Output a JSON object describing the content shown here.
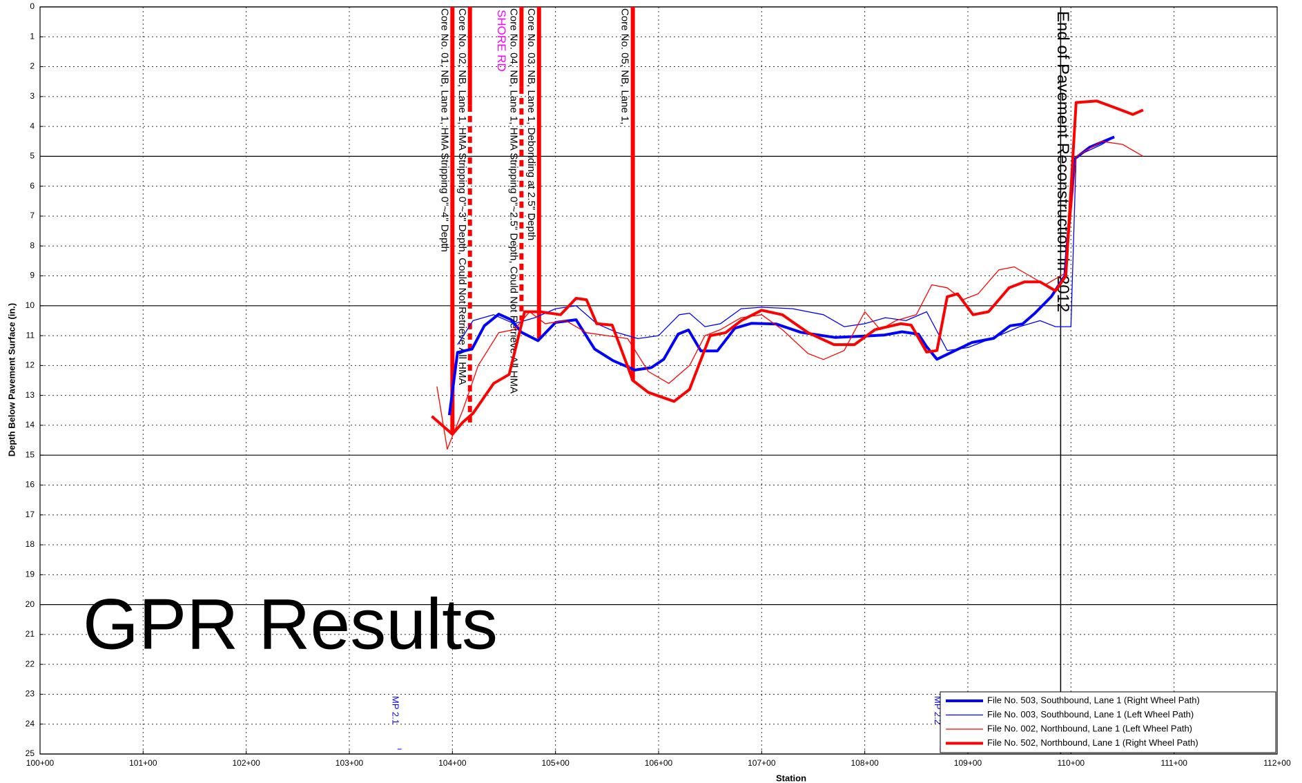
{
  "chart_data": {
    "type": "line",
    "overlay_title": "GPR Results",
    "x_label": "Station",
    "y_label": "Depth Below Pavement Surface (in.)",
    "xlim": [
      100,
      112
    ],
    "ylim": [
      0,
      25
    ],
    "y_inverted": true,
    "xticks": [
      {
        "value": 100,
        "label": "100+00"
      },
      {
        "value": 101,
        "label": "101+00"
      },
      {
        "value": 102,
        "label": "102+00"
      },
      {
        "value": 103,
        "label": "103+00"
      },
      {
        "value": 104,
        "label": "104+00"
      },
      {
        "value": 105,
        "label": "105+00"
      },
      {
        "value": 106,
        "label": "106+00"
      },
      {
        "value": 107,
        "label": "107+00"
      },
      {
        "value": 108,
        "label": "108+00"
      },
      {
        "value": 109,
        "label": "109+00"
      },
      {
        "value": 110,
        "label": "110+00"
      },
      {
        "value": 111,
        "label": "111+00"
      },
      {
        "value": 112,
        "label": "112+00"
      }
    ],
    "yticks": [
      0,
      1,
      2,
      3,
      4,
      5,
      6,
      7,
      8,
      9,
      10,
      11,
      12,
      13,
      14,
      15,
      16,
      17,
      18,
      19,
      20,
      21,
      22,
      23,
      24,
      25
    ],
    "grid": true,
    "legend_position": "lower right",
    "series": [
      {
        "name": "File No. 503, Southbound, Lane 1 (Right Wheel Path)",
        "color": "#0000ff",
        "line_width": 4,
        "x": [
          103.97,
          104.05,
          104.19,
          104.31,
          104.45,
          104.57,
          104.67,
          104.83,
          105.0,
          105.2,
          105.38,
          105.56,
          105.77,
          105.93,
          106.05,
          106.19,
          106.29,
          106.41,
          106.57,
          106.74,
          106.9,
          107.14,
          107.38,
          107.71,
          108.03,
          108.19,
          108.36,
          108.52,
          108.6,
          108.7,
          108.84,
          109.04,
          109.25,
          109.41,
          109.53,
          109.65,
          109.81,
          109.94,
          110.03,
          110.18,
          110.42
        ],
        "values": [
          13.66,
          11.56,
          11.45,
          10.67,
          10.28,
          10.47,
          10.89,
          11.17,
          10.56,
          10.47,
          11.45,
          11.84,
          12.15,
          12.07,
          11.79,
          10.95,
          10.81,
          11.51,
          11.51,
          10.75,
          10.59,
          10.61,
          10.89,
          11.06,
          11.01,
          10.98,
          10.87,
          10.95,
          11.37,
          11.79,
          11.56,
          11.23,
          11.09,
          10.67,
          10.61,
          10.25,
          9.69,
          9.0,
          5.1,
          4.7,
          4.35
        ]
      },
      {
        "name": "File No. 003, Southbound, Lane 1 (Left Wheel Path)",
        "color": "#0000ff",
        "line_width": 1.3,
        "x": [
          104.05,
          104.2,
          104.4,
          104.6,
          104.8,
          105.0,
          105.2,
          105.4,
          105.6,
          105.8,
          106.0,
          106.2,
          106.3,
          106.45,
          106.6,
          106.8,
          107.0,
          107.3,
          107.6,
          107.8,
          108.0,
          108.2,
          108.4,
          108.6,
          108.8,
          109.0,
          109.3,
          109.5,
          109.7,
          109.85,
          110.0,
          110.05,
          110.3,
          110.4
        ],
        "values": [
          11.3,
          10.5,
          10.3,
          10.6,
          10.4,
          10.1,
          10.0,
          10.6,
          10.9,
          11.1,
          11.0,
          10.3,
          10.25,
          10.7,
          10.6,
          10.1,
          10.05,
          10.1,
          10.3,
          10.7,
          10.6,
          10.4,
          10.5,
          10.2,
          11.5,
          11.4,
          11.0,
          10.7,
          10.5,
          10.7,
          10.7,
          5.0,
          4.6,
          4.4
        ]
      },
      {
        "name": "File No. 002, Northbound, Lane 1 (Left Wheel Path)",
        "color": "#ff0000",
        "line_width": 1.3,
        "x": [
          103.85,
          103.95,
          104.1,
          104.25,
          104.45,
          104.6,
          104.75,
          104.9,
          105.1,
          105.3,
          105.5,
          105.7,
          105.9,
          106.1,
          106.3,
          106.45,
          106.6,
          106.8,
          107.0,
          107.2,
          107.45,
          107.6,
          107.8,
          108.0,
          108.15,
          108.3,
          108.5,
          108.65,
          108.8,
          108.95,
          109.1,
          109.3,
          109.45,
          109.6,
          109.75,
          109.95,
          110.05,
          110.3,
          110.5,
          110.7
        ],
        "values": [
          12.7,
          14.8,
          13.5,
          12.0,
          10.9,
          10.8,
          10.2,
          10.6,
          10.5,
          10.9,
          11.0,
          11.1,
          12.2,
          12.6,
          12.0,
          11.0,
          10.8,
          10.4,
          10.3,
          10.8,
          11.6,
          11.8,
          11.5,
          10.2,
          10.8,
          10.5,
          10.3,
          9.3,
          9.4,
          9.8,
          9.6,
          8.8,
          8.7,
          9.0,
          9.3,
          8.9,
          5.0,
          4.5,
          4.6,
          5.0
        ]
      },
      {
        "name": "File No. 502, Northbound, Lane 1 (Right Wheel Path)",
        "color": "#ff0000",
        "line_width": 4,
        "x": [
          103.8,
          104.0,
          104.1,
          104.2,
          104.4,
          104.55,
          104.7,
          104.85,
          105.05,
          105.2,
          105.3,
          105.4,
          105.55,
          105.75,
          105.9,
          106.15,
          106.3,
          106.5,
          106.65,
          106.8,
          107.0,
          107.2,
          107.45,
          107.7,
          107.9,
          108.1,
          108.35,
          108.45,
          108.6,
          108.7,
          108.8,
          108.9,
          109.05,
          109.2,
          109.4,
          109.55,
          109.7,
          109.85,
          109.95,
          110.05,
          110.25,
          110.45,
          110.6,
          110.7
        ],
        "values": [
          13.7,
          14.3,
          13.9,
          13.6,
          12.6,
          12.3,
          10.2,
          10.2,
          10.3,
          9.75,
          9.8,
          10.6,
          10.65,
          12.5,
          12.9,
          13.2,
          12.8,
          11.0,
          10.9,
          10.5,
          10.15,
          10.3,
          10.9,
          11.3,
          11.3,
          10.8,
          10.6,
          10.65,
          11.55,
          11.5,
          9.7,
          9.6,
          10.3,
          10.2,
          9.4,
          9.2,
          9.2,
          9.5,
          9.0,
          3.2,
          3.15,
          3.4,
          3.6,
          3.45
        ]
      }
    ],
    "cores": [
      {
        "station": 104.0,
        "depth": 14.3,
        "color": "#ff0000",
        "label": "Core No. 01, NB, Lane 1, HMA Stripping 0\"~4\" Depth"
      },
      {
        "station": 104.17,
        "depth": 14.0,
        "dash_from": 3.3,
        "color": "#ff0000",
        "label": "Core No. 02, NB, Lane 1, HMA Stripping 0\"~3\" Depth, Could Not Retrieve All HMA"
      },
      {
        "station": 104.67,
        "depth": 10.5,
        "dash_from": 2.7,
        "color": "#ff0000",
        "label": "Core No. 04, NB, Lane 1, HMA Stripping 0\"~2.5\" Depth, Could Not Retrieve All HMA"
      },
      {
        "station": 104.84,
        "depth": 11.1,
        "color": "#ff0000",
        "label": "Core No. 03, NB, Lane 1, Debonding at 2.5\" Depth"
      },
      {
        "station": 105.75,
        "depth": 12.5,
        "color": "#ff0000",
        "label": "Core No. 05, NB, Lane 1,"
      }
    ],
    "end_marker": {
      "station": 109.9,
      "color": "#000000",
      "label": "End of Pavement Reconstruction in 2012"
    },
    "road_label": {
      "station": 104.47,
      "color": "#ff00ff",
      "label": "SHORE RD"
    },
    "mileposts": [
      {
        "station": 103.44,
        "color": "#0000ff",
        "label": "MP 2.1"
      },
      {
        "station": 108.7,
        "color": "#0000ff",
        "label": "MP 2.2"
      }
    ]
  }
}
